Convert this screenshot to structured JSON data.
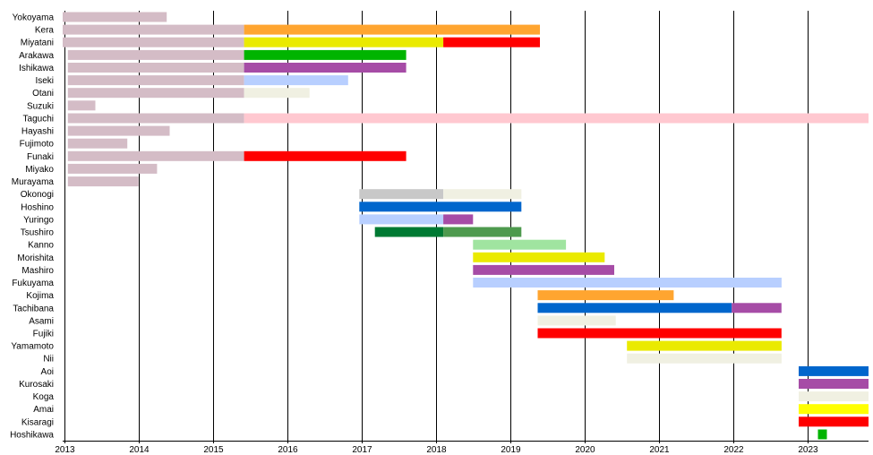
{
  "chart_data": {
    "type": "timeline",
    "title": "",
    "xlabel": "",
    "ylabel": "",
    "xlim": [
      2012.98,
      2023.82
    ],
    "ticks": [
      2013,
      2014,
      2015,
      2016,
      2017,
      2018,
      2019,
      2020,
      2021,
      2022,
      2023
    ],
    "grid": true,
    "rows": [
      {
        "name": "Yokoyama",
        "segments": [
          {
            "start": 2012.98,
            "end": 2014.38,
            "color": "#d4bcc6"
          }
        ]
      },
      {
        "name": "Kera",
        "segments": [
          {
            "start": 2012.98,
            "end": 2015.42,
            "color": "#d4bcc6"
          },
          {
            "start": 2015.42,
            "end": 2019.4,
            "color": "#ffa530"
          }
        ]
      },
      {
        "name": "Miyatani",
        "segments": [
          {
            "start": 2012.98,
            "end": 2015.42,
            "color": "#d4bcc6"
          },
          {
            "start": 2015.42,
            "end": 2018.1,
            "color": "#eaea00"
          },
          {
            "start": 2018.1,
            "end": 2019.4,
            "color": "#ff0000"
          }
        ]
      },
      {
        "name": "Arakawa",
        "segments": [
          {
            "start": 2013.05,
            "end": 2015.42,
            "color": "#d4bcc6"
          },
          {
            "start": 2015.42,
            "end": 2017.6,
            "color": "#00b400"
          }
        ]
      },
      {
        "name": "Ishikawa",
        "segments": [
          {
            "start": 2013.05,
            "end": 2015.42,
            "color": "#d4bcc6"
          },
          {
            "start": 2015.42,
            "end": 2017.6,
            "color": "#a64ca6"
          }
        ]
      },
      {
        "name": "Iseki",
        "segments": [
          {
            "start": 2013.05,
            "end": 2015.42,
            "color": "#d4bcc6"
          },
          {
            "start": 2015.42,
            "end": 2016.82,
            "color": "#b8cfff"
          }
        ]
      },
      {
        "name": "Otani",
        "segments": [
          {
            "start": 2013.05,
            "end": 2015.42,
            "color": "#d4bcc6"
          },
          {
            "start": 2015.42,
            "end": 2016.3,
            "color": "#f0f0e2"
          }
        ]
      },
      {
        "name": "Suzuki",
        "segments": [
          {
            "start": 2013.05,
            "end": 2013.42,
            "color": "#d4bcc6"
          }
        ]
      },
      {
        "name": "Taguchi",
        "segments": [
          {
            "start": 2013.05,
            "end": 2015.42,
            "color": "#d4bcc6"
          },
          {
            "start": 2015.42,
            "end": 2023.82,
            "color": "#ffc8d0"
          }
        ]
      },
      {
        "name": "Hayashi",
        "segments": [
          {
            "start": 2013.05,
            "end": 2014.42,
            "color": "#d4bcc6"
          }
        ]
      },
      {
        "name": "Fujimoto",
        "segments": [
          {
            "start": 2013.05,
            "end": 2013.85,
            "color": "#d4bcc6"
          }
        ]
      },
      {
        "name": "Funaki",
        "segments": [
          {
            "start": 2013.05,
            "end": 2015.42,
            "color": "#d4bcc6"
          },
          {
            "start": 2015.42,
            "end": 2017.6,
            "color": "#ff0000"
          }
        ]
      },
      {
        "name": "Miyako",
        "segments": [
          {
            "start": 2013.05,
            "end": 2014.25,
            "color": "#d4bcc6"
          }
        ]
      },
      {
        "name": "Murayama",
        "segments": [
          {
            "start": 2013.05,
            "end": 2014.0,
            "color": "#d4bcc6"
          }
        ]
      },
      {
        "name": "Okonogi",
        "segments": [
          {
            "start": 2016.97,
            "end": 2018.1,
            "color": "#c8c8c8"
          },
          {
            "start": 2018.1,
            "end": 2019.15,
            "color": "#f0f0e2"
          }
        ]
      },
      {
        "name": "Hoshino",
        "segments": [
          {
            "start": 2016.97,
            "end": 2019.15,
            "color": "#0066cc"
          }
        ]
      },
      {
        "name": "Yuringo",
        "segments": [
          {
            "start": 2016.97,
            "end": 2018.1,
            "color": "#b8cfff"
          },
          {
            "start": 2018.1,
            "end": 2018.5,
            "color": "#a64ca6"
          }
        ]
      },
      {
        "name": "Tsushiro",
        "segments": [
          {
            "start": 2017.18,
            "end": 2018.1,
            "color": "#007a33"
          },
          {
            "start": 2018.1,
            "end": 2019.15,
            "color": "#4e9a4e"
          }
        ]
      },
      {
        "name": "Kanno",
        "segments": [
          {
            "start": 2018.5,
            "end": 2019.75,
            "color": "#a0e4a0"
          }
        ]
      },
      {
        "name": "Morishita",
        "segments": [
          {
            "start": 2018.5,
            "end": 2020.27,
            "color": "#eaea00"
          }
        ]
      },
      {
        "name": "Mashiro",
        "segments": [
          {
            "start": 2018.5,
            "end": 2020.4,
            "color": "#a64ca6"
          }
        ]
      },
      {
        "name": "Fukuyama",
        "segments": [
          {
            "start": 2018.5,
            "end": 2022.65,
            "color": "#b8cfff"
          }
        ]
      },
      {
        "name": "Kojima",
        "segments": [
          {
            "start": 2019.37,
            "end": 2021.2,
            "color": "#ffa530"
          }
        ]
      },
      {
        "name": "Tachibana",
        "segments": [
          {
            "start": 2019.37,
            "end": 2021.98,
            "color": "#0066cc"
          },
          {
            "start": 2021.98,
            "end": 2022.65,
            "color": "#a64ca6"
          }
        ]
      },
      {
        "name": "Asami",
        "segments": [
          {
            "start": 2019.37,
            "end": 2020.42,
            "color": "#f0f0e2"
          }
        ]
      },
      {
        "name": "Fujiki",
        "segments": [
          {
            "start": 2019.37,
            "end": 2022.65,
            "color": "#ff0000"
          }
        ]
      },
      {
        "name": "Yamamoto",
        "segments": [
          {
            "start": 2020.57,
            "end": 2022.65,
            "color": "#eaea00"
          }
        ]
      },
      {
        "name": "Nii",
        "segments": [
          {
            "start": 2020.57,
            "end": 2022.65,
            "color": "#f0f0e2"
          }
        ]
      },
      {
        "name": "Aoi",
        "segments": [
          {
            "start": 2022.88,
            "end": 2023.82,
            "color": "#0066cc"
          }
        ]
      },
      {
        "name": "Kurosaki",
        "segments": [
          {
            "start": 2022.88,
            "end": 2023.82,
            "color": "#a64ca6"
          }
        ]
      },
      {
        "name": "Koga",
        "segments": [
          {
            "start": 2022.88,
            "end": 2023.82,
            "color": "#f0f0e2"
          }
        ]
      },
      {
        "name": "Amai",
        "segments": [
          {
            "start": 2022.88,
            "end": 2023.82,
            "color": "#ffff00"
          }
        ]
      },
      {
        "name": "Kisaragi",
        "segments": [
          {
            "start": 2022.88,
            "end": 2023.82,
            "color": "#ff0000"
          }
        ]
      },
      {
        "name": "Hoshikawa",
        "segments": [
          {
            "start": 2023.14,
            "end": 2023.26,
            "color": "#00b400"
          }
        ]
      }
    ]
  }
}
